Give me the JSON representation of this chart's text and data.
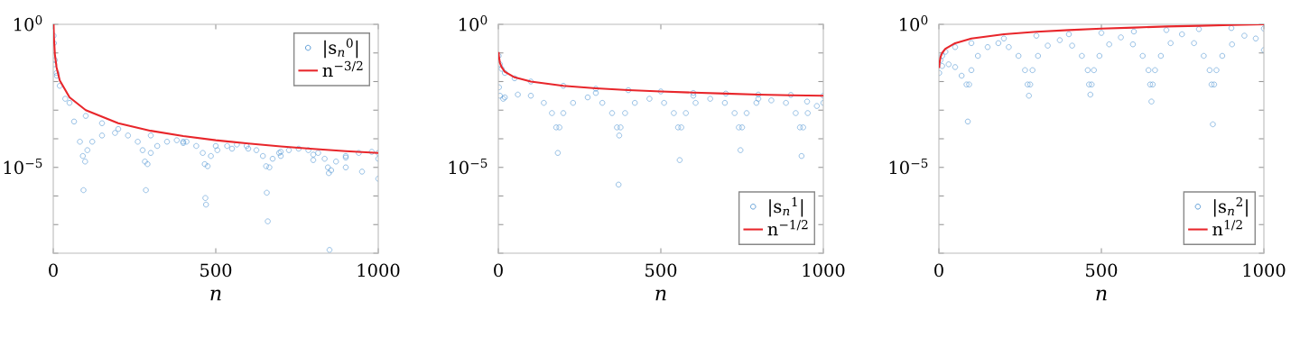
{
  "chart_data": [
    {
      "type": "scatter",
      "xlabel": "n",
      "log": "y",
      "xlim": [
        0,
        1000
      ],
      "xticks": [
        0,
        500,
        1000
      ],
      "ylim": [
        1e-08,
        1
      ],
      "yticks": [
        {
          "value": 1e-08,
          "label": null
        },
        {
          "value": 1e-07,
          "label": null
        },
        {
          "value": 1e-06,
          "label": null
        },
        {
          "value": 1e-05,
          "label": "10$^{−5}$"
        },
        {
          "value": 0.0001,
          "label": null
        },
        {
          "value": 0.001,
          "label": null
        },
        {
          "value": 0.01,
          "label": null
        },
        {
          "value": 0.1,
          "label": null
        },
        {
          "value": 1,
          "label": "10$^{0}$"
        }
      ],
      "legend": "top right",
      "series": [
        {
          "name": "|s$_{n}$$^{0}$|",
          "marker": "circle",
          "color": "#5b9bd5",
          "x": [
            1,
            2,
            5,
            10,
            20,
            50,
            100,
            150,
            200,
            300,
            400,
            500,
            600,
            700,
            800,
            900,
            1000,
            3,
            11,
            37,
            64,
            82,
            91,
            93,
            98,
            105,
            120,
            150,
            190,
            230,
            260,
            275,
            282,
            285,
            290,
            300,
            320,
            350,
            380,
            410,
            440,
            460,
            466,
            468,
            470,
            475,
            485,
            505,
            535,
            565,
            595,
            625,
            645,
            655,
            657,
            660,
            665,
            675,
            695,
            725,
            755,
            785,
            815,
            835,
            845,
            848,
            850,
            855,
            870,
            900,
            940,
            980,
            1000,
            400,
            550,
            700,
            800,
            900,
            950,
            1000
          ],
          "values": [
            0.4,
            0.22,
            0.056,
            0.02,
            0.0071,
            0.0018,
            0.00063,
            0.00035,
            0.00022,
            0.00013,
            7.9e-05,
            5.6e-05,
            4.5e-05,
            3.5e-05,
            2.8e-05,
            2.2e-05,
            2e-05,
            0.04,
            0.016,
            0.0025,
            0.0004,
            7.9e-05,
            2.5e-05,
            1.6e-06,
            1.6e-05,
            4e-05,
            7.9e-05,
            0.00013,
            0.00016,
            0.00013,
            7.9e-05,
            4e-05,
            1.6e-05,
            1.6e-06,
            1.3e-05,
            3.2e-05,
            5.6e-05,
            7.9e-05,
            8.9e-05,
            7.9e-05,
            5.6e-05,
            3.2e-05,
            1.3e-05,
            8.5e-07,
            5e-07,
            1.1e-05,
            2.5e-05,
            4e-05,
            5.6e-05,
            6.3e-05,
            5.6e-05,
            4e-05,
            2.5e-05,
            1.1e-05,
            1.3e-06,
            1.3e-07,
            1e-05,
            2e-05,
            3.2e-05,
            4e-05,
            4.5e-05,
            4e-05,
            3.2e-05,
            2e-05,
            1e-05,
            6.3e-06,
            1.3e-08,
            7.9e-06,
            1.6e-05,
            2.5e-05,
            3.2e-05,
            3.5e-05,
            3.2e-05,
            7.1e-05,
            4.5e-05,
            2.5e-05,
            1.8e-05,
            1e-05,
            7.1e-06,
            4e-06
          ]
        },
        {
          "name": "n$^{−3/2}$",
          "type": "line",
          "color": "#e8262b",
          "x": [
            1,
            2,
            5,
            10,
            20,
            50,
            100,
            200,
            300,
            400,
            500,
            600,
            700,
            800,
            900,
            1000
          ],
          "values": [
            1,
            0.35,
            0.089,
            0.032,
            0.011,
            0.0028,
            0.001,
            0.00035,
            0.00019,
            0.000125,
            8.9e-05,
            6.8e-05,
            5.4e-05,
            4.4e-05,
            3.7e-05,
            3.2e-05
          ]
        }
      ]
    },
    {
      "type": "scatter",
      "xlabel": "n",
      "log": "y",
      "xlim": [
        0,
        1000
      ],
      "xticks": [
        0,
        500,
        1000
      ],
      "ylim": [
        1e-08,
        1
      ],
      "yticks": [
        {
          "value": 1e-08,
          "label": null
        },
        {
          "value": 1e-07,
          "label": null
        },
        {
          "value": 1e-06,
          "label": null
        },
        {
          "value": 1e-05,
          "label": "10$^{−5}$"
        },
        {
          "value": 0.0001,
          "label": null
        },
        {
          "value": 0.001,
          "label": null
        },
        {
          "value": 0.01,
          "label": null
        },
        {
          "value": 0.1,
          "label": null
        },
        {
          "value": 1,
          "label": "10$^{0}$"
        }
      ],
      "legend": "bottom right",
      "series": [
        {
          "name": "|s$_{n}$$^{1}$|",
          "marker": "circle",
          "color": "#5b9bd5",
          "x": [
            1,
            5,
            10,
            20,
            50,
            100,
            200,
            300,
            400,
            500,
            600,
            700,
            800,
            900,
            1000,
            2,
            5,
            15,
            20,
            60,
            100,
            140,
            165,
            178,
            183,
            188,
            200,
            230,
            275,
            320,
            350,
            365,
            370,
            372,
            376,
            390,
            420,
            465,
            510,
            540,
            553,
            558,
            563,
            577,
            607,
            652,
            697,
            727,
            740,
            745,
            750,
            764,
            794,
            840,
            885,
            915,
            928,
            933,
            938,
            952,
            980,
            1000,
            300,
            600,
            800,
            950
          ],
          "values": [
            0.079,
            0.04,
            0.028,
            0.02,
            0.013,
            0.01,
            0.0071,
            0.0056,
            0.005,
            0.0045,
            0.004,
            0.0038,
            0.0035,
            0.0034,
            0.0032,
            0.0063,
            0.0032,
            0.0025,
            0.0028,
            0.0035,
            0.0032,
            0.0018,
            0.00079,
            0.00025,
            3.2e-05,
            0.00025,
            0.00079,
            0.0018,
            0.0028,
            0.0018,
            0.00079,
            0.00025,
            2.5e-06,
            0.00013,
            0.00025,
            0.00079,
            0.0018,
            0.0025,
            0.0018,
            0.00079,
            0.00025,
            1.8e-05,
            0.00025,
            0.00079,
            0.0018,
            0.0025,
            0.0018,
            0.00079,
            0.00025,
            4e-05,
            0.00025,
            0.00079,
            0.0018,
            0.0022,
            0.0018,
            0.00079,
            0.00025,
            2.5e-05,
            0.00025,
            0.00079,
            0.0014,
            0.0018,
            0.004,
            0.0032,
            0.0025,
            0.002
          ]
        },
        {
          "name": "n$^{−1/2}$",
          "type": "line",
          "color": "#e8262b",
          "x": [
            1,
            2,
            5,
            10,
            20,
            50,
            100,
            200,
            300,
            400,
            500,
            600,
            700,
            800,
            900,
            1000
          ],
          "values": [
            0.1,
            0.071,
            0.045,
            0.032,
            0.022,
            0.014,
            0.01,
            0.0071,
            0.0058,
            0.005,
            0.0045,
            0.0041,
            0.0038,
            0.0035,
            0.0033,
            0.0032
          ]
        }
      ]
    },
    {
      "type": "scatter",
      "xlabel": "n",
      "log": "y",
      "xlim": [
        0,
        1000
      ],
      "xticks": [
        0,
        500,
        1000
      ],
      "ylim": [
        1e-08,
        1
      ],
      "yticks": [
        {
          "value": 1e-08,
          "label": null
        },
        {
          "value": 1e-07,
          "label": null
        },
        {
          "value": 1e-06,
          "label": null
        },
        {
          "value": 1e-05,
          "label": "10$^{−5}$"
        },
        {
          "value": 0.0001,
          "label": null
        },
        {
          "value": 0.001,
          "label": null
        },
        {
          "value": 0.01,
          "label": null
        },
        {
          "value": 0.1,
          "label": null
        },
        {
          "value": 1,
          "label": "10$^{0}$"
        }
      ],
      "legend": "bottom right",
      "series": [
        {
          "name": "|s$_{n}$$^{2}$|",
          "marker": "circle",
          "color": "#5b9bd5",
          "x": [
            1,
            5,
            10,
            20,
            50,
            100,
            200,
            300,
            400,
            500,
            600,
            700,
            800,
            900,
            1000,
            10,
            30,
            50,
            70,
            85,
            89,
            93,
            100,
            120,
            150,
            183,
            215,
            245,
            265,
            273,
            277,
            281,
            288,
            305,
            335,
            372,
            410,
            440,
            458,
            462,
            466,
            470,
            477,
            494,
            524,
            560,
            597,
            627,
            645,
            650,
            654,
            658,
            665,
            683,
            713,
            748,
            785,
            815,
            833,
            839,
            843,
            847,
            854,
            872,
            902,
            940,
            975,
            1000
          ],
          "values": [
            0.02,
            0.056,
            0.079,
            0.11,
            0.16,
            0.22,
            0.32,
            0.4,
            0.45,
            0.5,
            0.56,
            0.63,
            0.68,
            0.74,
            0.71,
            0.035,
            0.04,
            0.032,
            0.016,
            0.0079,
            0.0004,
            0.0079,
            0.025,
            0.079,
            0.16,
            0.22,
            0.16,
            0.079,
            0.025,
            0.0079,
            0.0032,
            0.0079,
            0.025,
            0.079,
            0.18,
            0.28,
            0.18,
            0.079,
            0.025,
            0.0079,
            0.0035,
            0.0079,
            0.025,
            0.079,
            0.2,
            0.35,
            0.2,
            0.079,
            0.025,
            0.0079,
            0.002,
            0.0079,
            0.025,
            0.079,
            0.22,
            0.45,
            0.22,
            0.079,
            0.025,
            0.0079,
            0.00032,
            0.0079,
            0.025,
            0.079,
            0.2,
            0.4,
            0.32,
            0.126
          ]
        },
        {
          "name": "n$^{1/2}$",
          "type": "line",
          "color": "#e8262b",
          "x": [
            1,
            2,
            5,
            10,
            20,
            50,
            100,
            200,
            300,
            400,
            500,
            600,
            700,
            800,
            900,
            1000
          ],
          "values": [
            0.032,
            0.045,
            0.071,
            0.1,
            0.14,
            0.22,
            0.32,
            0.45,
            0.55,
            0.63,
            0.71,
            0.77,
            0.84,
            0.89,
            0.95,
            1.0
          ]
        }
      ]
    }
  ]
}
